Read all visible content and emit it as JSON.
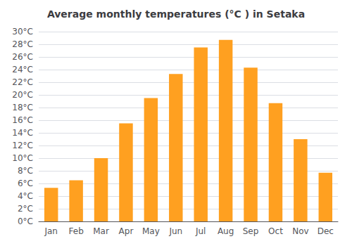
{
  "chart_data": {
    "type": "bar",
    "title": "Average monthly temperatures (°C ) in Setaka",
    "categories": [
      "Jan",
      "Feb",
      "Mar",
      "Apr",
      "May",
      "Jun",
      "Jul",
      "Aug",
      "Sep",
      "Oct",
      "Nov",
      "Dec"
    ],
    "values": [
      5.3,
      6.5,
      10.0,
      15.5,
      19.5,
      23.3,
      27.5,
      28.7,
      24.3,
      18.7,
      13.0,
      7.7
    ],
    "color": "#FFA020",
    "ylim": [
      0,
      30
    ],
    "yticks": [
      {
        "value": 0,
        "label": "0°C"
      },
      {
        "value": 2,
        "label": "2°C"
      },
      {
        "value": 4,
        "label": "4°C"
      },
      {
        "value": 6,
        "label": "6°C"
      },
      {
        "value": 8,
        "label": "8°C"
      },
      {
        "value": 10,
        "label": "10°C"
      },
      {
        "value": 12,
        "label": "12°C"
      },
      {
        "value": 14,
        "label": "14°C"
      },
      {
        "value": 16,
        "label": "16°C"
      },
      {
        "value": 18,
        "label": "18°C"
      },
      {
        "value": 20,
        "label": "20°C"
      },
      {
        "value": 22,
        "label": "22°C"
      },
      {
        "value": 24,
        "label": "24°C"
      },
      {
        "value": 26,
        "label": "26°C"
      },
      {
        "value": 28,
        "label": "28°C"
      },
      {
        "value": 30,
        "label": "30°C"
      }
    ],
    "grid": true
  }
}
